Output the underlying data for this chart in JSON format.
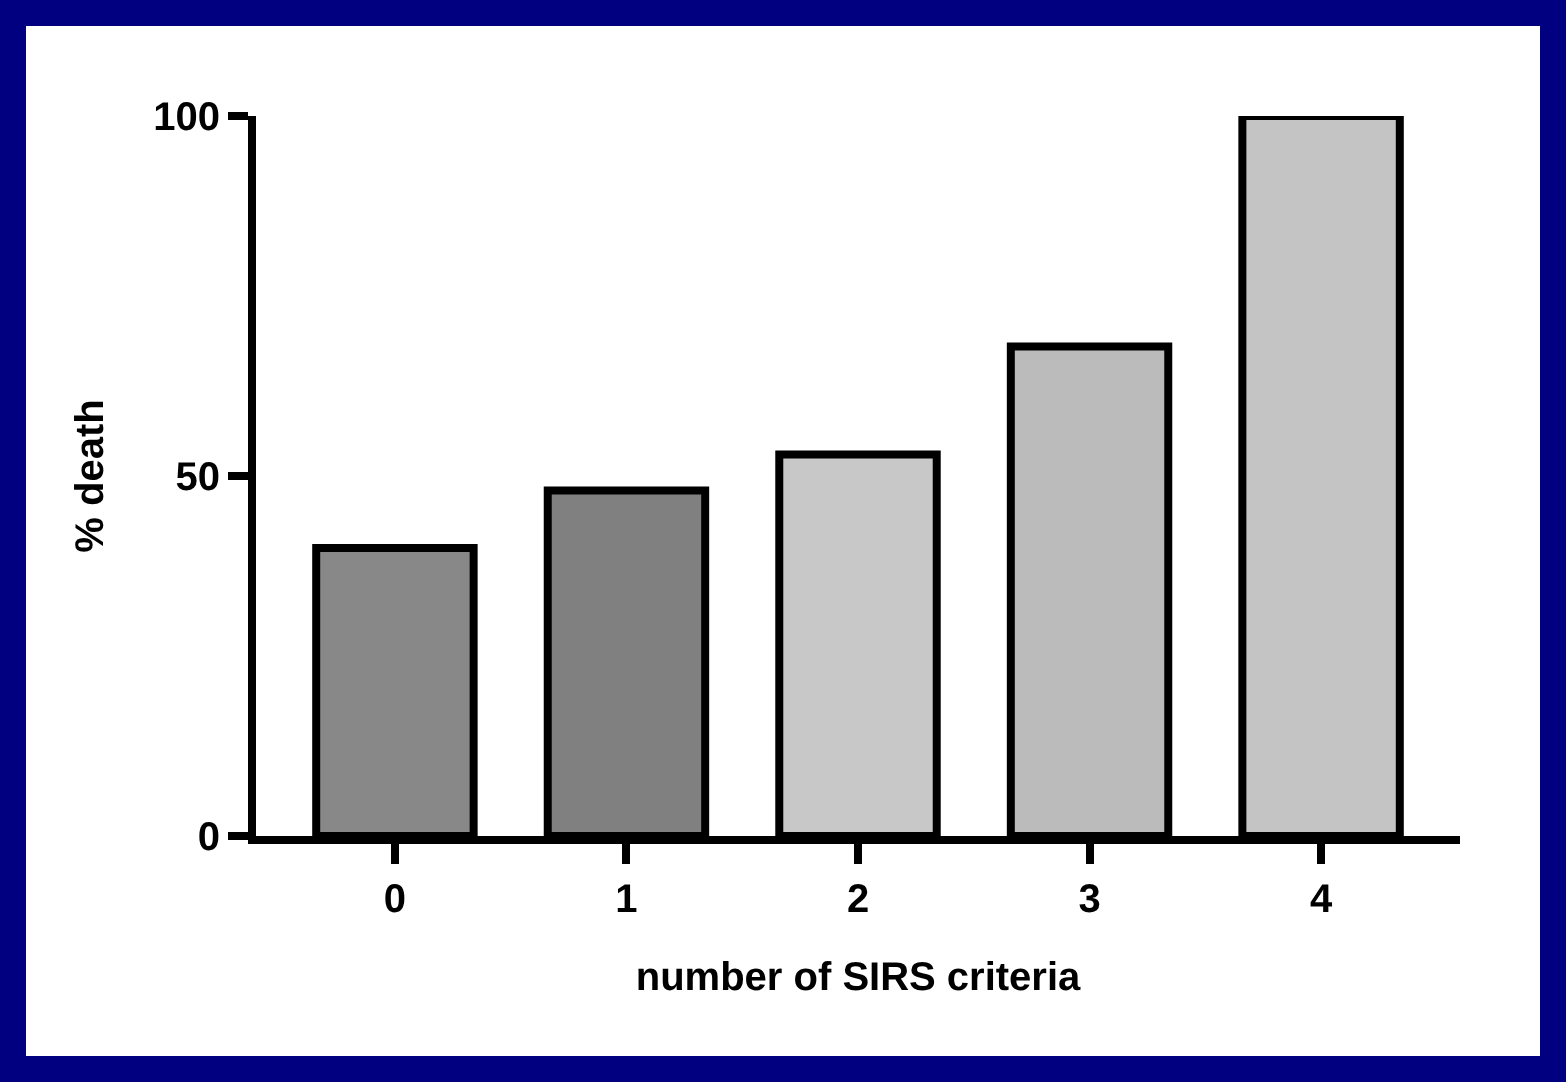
{
  "chart_data": {
    "type": "bar",
    "xlabel": "number of SIRS criteria",
    "ylabel": "% death",
    "categories": [
      "0",
      "1",
      "2",
      "3",
      "4"
    ],
    "values": [
      40,
      48,
      53,
      68,
      100
    ],
    "colors": [
      "#888888",
      "#808080",
      "#c8c8c8",
      "#bbbbbb",
      "#c4c4c4"
    ],
    "ylim": [
      0,
      100
    ],
    "yticks": [
      0,
      50,
      100
    ],
    "grid": false
  }
}
